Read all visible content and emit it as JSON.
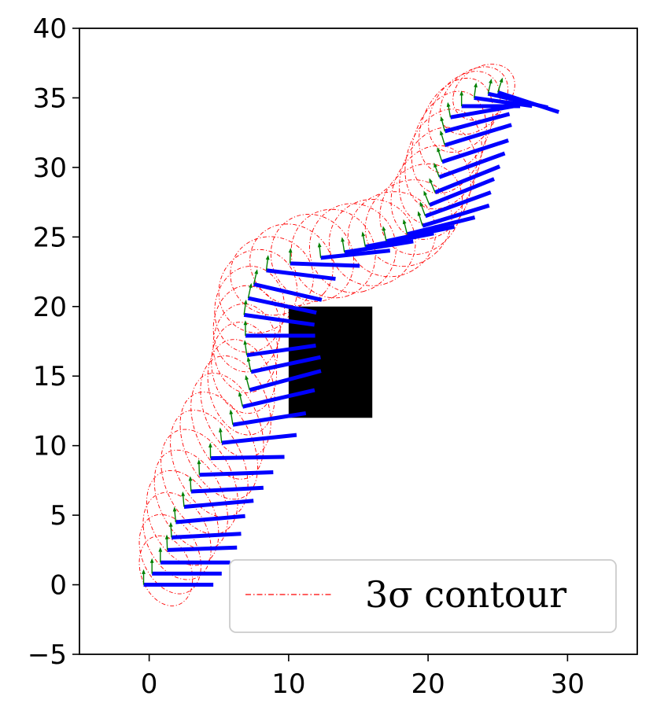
{
  "chart_data": {
    "type": "line",
    "title": "",
    "xlabel": "",
    "ylabel": "",
    "xlim": [
      -5,
      35
    ],
    "ylim": [
      -5,
      40
    ],
    "x_ticks": [
      0,
      10,
      20,
      30
    ],
    "x_tick_labels": [
      "0",
      "10",
      "20",
      "30"
    ],
    "y_ticks": [
      -5,
      0,
      5,
      10,
      15,
      20,
      25,
      30,
      35,
      40
    ],
    "y_tick_labels": [
      "−5",
      "0",
      "5",
      "10",
      "15",
      "20",
      "25",
      "30",
      "35",
      "40"
    ],
    "grid": false,
    "legend": {
      "placement": "lower-right",
      "entries": [
        {
          "label": "3σ contour",
          "color": "#ff0000",
          "style": "dash-dot"
        }
      ]
    },
    "obstacle": {
      "x": [
        10,
        16
      ],
      "y": [
        12,
        20
      ],
      "color": "#000000"
    },
    "series": [
      {
        "kind": "pose-bars",
        "color": "#0000ff",
        "arrow_color": "#008000",
        "poses": [
          {
            "x": -0.4,
            "y": 0.0,
            "angle": 0,
            "len": 5.0
          },
          {
            "x": 0.2,
            "y": 0.8,
            "angle": 0,
            "len": 5.0
          },
          {
            "x": 0.8,
            "y": 1.6,
            "angle": 0,
            "len": 5.0
          },
          {
            "x": 1.3,
            "y": 2.5,
            "angle": 2,
            "len": 5.0
          },
          {
            "x": 1.6,
            "y": 3.4,
            "angle": 3,
            "len": 5.0
          },
          {
            "x": 1.9,
            "y": 4.5,
            "angle": 5,
            "len": 5.0
          },
          {
            "x": 2.5,
            "y": 5.6,
            "angle": 5,
            "len": 5.0
          },
          {
            "x": 3.0,
            "y": 6.7,
            "angle": 3,
            "len": 5.2
          },
          {
            "x": 3.6,
            "y": 7.9,
            "angle": 2,
            "len": 5.3
          },
          {
            "x": 4.4,
            "y": 9.1,
            "angle": 1,
            "len": 5.3
          },
          {
            "x": 5.2,
            "y": 10.2,
            "angle": 6,
            "len": 5.4
          },
          {
            "x": 6.0,
            "y": 11.5,
            "angle": 9,
            "len": 5.3
          },
          {
            "x": 6.7,
            "y": 12.8,
            "angle": 13,
            "len": 5.3
          },
          {
            "x": 7.2,
            "y": 14.0,
            "angle": 15,
            "len": 5.3
          },
          {
            "x": 7.3,
            "y": 15.3,
            "angle": 12,
            "len": 5.1
          },
          {
            "x": 7.0,
            "y": 16.5,
            "angle": 8,
            "len": 5.0
          },
          {
            "x": 6.9,
            "y": 17.9,
            "angle": 0,
            "len": 5.0
          },
          {
            "x": 6.8,
            "y": 19.4,
            "angle": -8,
            "len": 5.1
          },
          {
            "x": 7.1,
            "y": 20.6,
            "angle": -12,
            "len": 5.0
          },
          {
            "x": 7.5,
            "y": 21.6,
            "angle": -13,
            "len": 5.0
          },
          {
            "x": 8.4,
            "y": 22.6,
            "angle": -7,
            "len": 5.0
          },
          {
            "x": 10.1,
            "y": 23.1,
            "angle": -2,
            "len": 5.0
          },
          {
            "x": 12.3,
            "y": 23.5,
            "angle": 6,
            "len": 5.0
          },
          {
            "x": 14.0,
            "y": 23.9,
            "angle": 9,
            "len": 5.0
          },
          {
            "x": 15.5,
            "y": 24.3,
            "angle": 11,
            "len": 5.0
          },
          {
            "x": 17.0,
            "y": 24.7,
            "angle": 12,
            "len": 5.0
          },
          {
            "x": 18.5,
            "y": 25.2,
            "angle": 14,
            "len": 5.0
          },
          {
            "x": 19.6,
            "y": 25.8,
            "angle": 17,
            "len": 5.0
          },
          {
            "x": 19.8,
            "y": 26.5,
            "angle": 20,
            "len": 5.0
          },
          {
            "x": 20.1,
            "y": 27.3,
            "angle": 22,
            "len": 5.0
          },
          {
            "x": 20.5,
            "y": 28.2,
            "angle": 22,
            "len": 5.0
          },
          {
            "x": 20.8,
            "y": 29.3,
            "angle": 20,
            "len": 5.0
          },
          {
            "x": 21.0,
            "y": 30.4,
            "angle": 18,
            "len": 5.0
          },
          {
            "x": 21.2,
            "y": 31.6,
            "angle": 17,
            "len": 5.0
          },
          {
            "x": 21.2,
            "y": 32.6,
            "angle": 15,
            "len": 4.8
          },
          {
            "x": 21.6,
            "y": 33.6,
            "angle": 10,
            "len": 4.6
          },
          {
            "x": 22.4,
            "y": 34.4,
            "angle": 0,
            "len": 4.2
          },
          {
            "x": 23.3,
            "y": 35.0,
            "angle": -8,
            "len": 4.2
          },
          {
            "x": 24.3,
            "y": 35.3,
            "angle": -13,
            "len": 4.4
          },
          {
            "x": 25.0,
            "y": 35.4,
            "angle": -18,
            "len": 4.6
          }
        ]
      },
      {
        "kind": "uncertainty-ellipses",
        "name": "3σ contour",
        "color": "#ff0000",
        "ellipses": [
          {
            "x": 1.2,
            "y": 1.0,
            "rx": 1.8,
            "ry": 2.6,
            "tilt": 20
          },
          {
            "x": 1.5,
            "y": 2.2,
            "rx": 2.0,
            "ry": 3.0,
            "tilt": 25
          },
          {
            "x": 2.0,
            "y": 3.5,
            "rx": 2.2,
            "ry": 3.3,
            "tilt": 25
          },
          {
            "x": 2.4,
            "y": 4.8,
            "rx": 2.3,
            "ry": 3.6,
            "tilt": 25
          },
          {
            "x": 3.0,
            "y": 6.1,
            "rx": 2.3,
            "ry": 3.8,
            "tilt": 25
          },
          {
            "x": 3.6,
            "y": 7.4,
            "rx": 2.4,
            "ry": 4.0,
            "tilt": 25
          },
          {
            "x": 4.3,
            "y": 8.7,
            "rx": 2.4,
            "ry": 4.1,
            "tilt": 25
          },
          {
            "x": 5.0,
            "y": 10.0,
            "rx": 2.4,
            "ry": 4.1,
            "tilt": 25
          },
          {
            "x": 5.6,
            "y": 11.4,
            "rx": 2.3,
            "ry": 4.0,
            "tilt": 22
          },
          {
            "x": 6.2,
            "y": 12.8,
            "rx": 2.3,
            "ry": 3.8,
            "tilt": 20
          },
          {
            "x": 6.6,
            "y": 14.2,
            "rx": 2.3,
            "ry": 3.5,
            "tilt": 15
          },
          {
            "x": 6.8,
            "y": 15.6,
            "rx": 2.3,
            "ry": 3.3,
            "tilt": 10
          },
          {
            "x": 6.9,
            "y": 17.0,
            "rx": 2.3,
            "ry": 3.2,
            "tilt": 5
          },
          {
            "x": 7.0,
            "y": 18.4,
            "rx": 2.4,
            "ry": 3.1,
            "tilt": 0
          },
          {
            "x": 7.2,
            "y": 19.8,
            "rx": 2.5,
            "ry": 3.1,
            "tilt": -5
          },
          {
            "x": 7.8,
            "y": 21.1,
            "rx": 2.8,
            "ry": 3.0,
            "tilt": -10
          },
          {
            "x": 8.8,
            "y": 22.2,
            "rx": 3.0,
            "ry": 2.8,
            "tilt": -20
          },
          {
            "x": 10.2,
            "y": 23.0,
            "rx": 3.1,
            "ry": 2.8,
            "tilt": -40
          },
          {
            "x": 11.7,
            "y": 23.5,
            "rx": 3.2,
            "ry": 2.9,
            "tilt": -60
          },
          {
            "x": 13.2,
            "y": 23.8,
            "rx": 3.2,
            "ry": 3.0,
            "tilt": -70
          },
          {
            "x": 14.6,
            "y": 24.2,
            "rx": 3.2,
            "ry": 3.1,
            "tilt": -75
          },
          {
            "x": 16.0,
            "y": 24.6,
            "rx": 3.1,
            "ry": 3.1,
            "tilt": -70
          },
          {
            "x": 17.4,
            "y": 25.2,
            "rx": 3.0,
            "ry": 3.2,
            "tilt": -60
          },
          {
            "x": 18.6,
            "y": 26.0,
            "rx": 2.9,
            "ry": 3.3,
            "tilt": -45
          },
          {
            "x": 19.5,
            "y": 27.0,
            "rx": 2.8,
            "ry": 3.4,
            "tilt": -30
          },
          {
            "x": 20.2,
            "y": 28.2,
            "rx": 2.7,
            "ry": 3.5,
            "tilt": -25
          },
          {
            "x": 20.7,
            "y": 29.4,
            "rx": 2.6,
            "ry": 3.6,
            "tilt": -22
          },
          {
            "x": 21.1,
            "y": 30.6,
            "rx": 2.6,
            "ry": 3.7,
            "tilt": -20
          },
          {
            "x": 21.5,
            "y": 31.8,
            "rx": 2.5,
            "ry": 3.8,
            "tilt": -20
          },
          {
            "x": 22.0,
            "y": 33.0,
            "rx": 2.4,
            "ry": 3.6,
            "tilt": -25
          },
          {
            "x": 22.6,
            "y": 34.0,
            "rx": 2.2,
            "ry": 3.2,
            "tilt": -35
          },
          {
            "x": 23.3,
            "y": 34.8,
            "rx": 2.0,
            "ry": 2.8,
            "tilt": -45
          },
          {
            "x": 24.0,
            "y": 35.4,
            "rx": 1.8,
            "ry": 2.4,
            "tilt": -55
          }
        ]
      }
    ]
  }
}
